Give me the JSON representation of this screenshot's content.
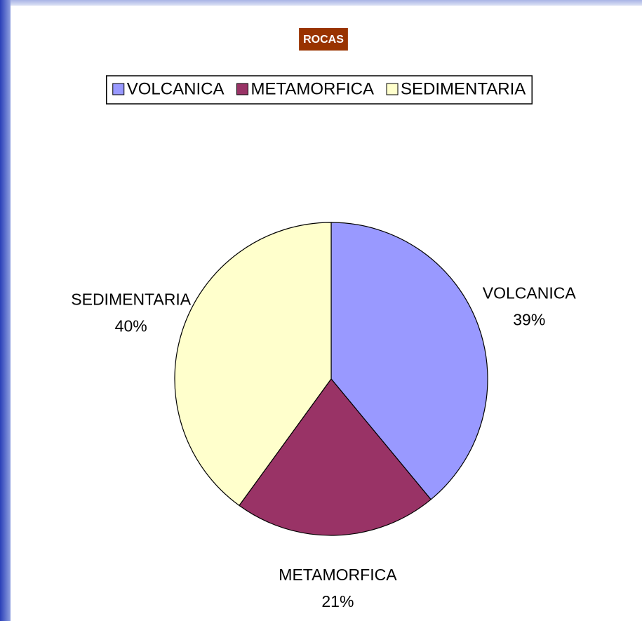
{
  "chart_data": {
    "type": "pie",
    "title": "ROCAS",
    "categories": [
      "VOLCANICA",
      "METAMORFICA",
      "SEDIMENTARIA"
    ],
    "values": [
      39,
      21,
      40
    ],
    "value_labels": [
      "39%",
      "21%",
      "40%"
    ],
    "colors": [
      "#9999ff",
      "#993366",
      "#ffffcc"
    ],
    "legend": "top"
  }
}
